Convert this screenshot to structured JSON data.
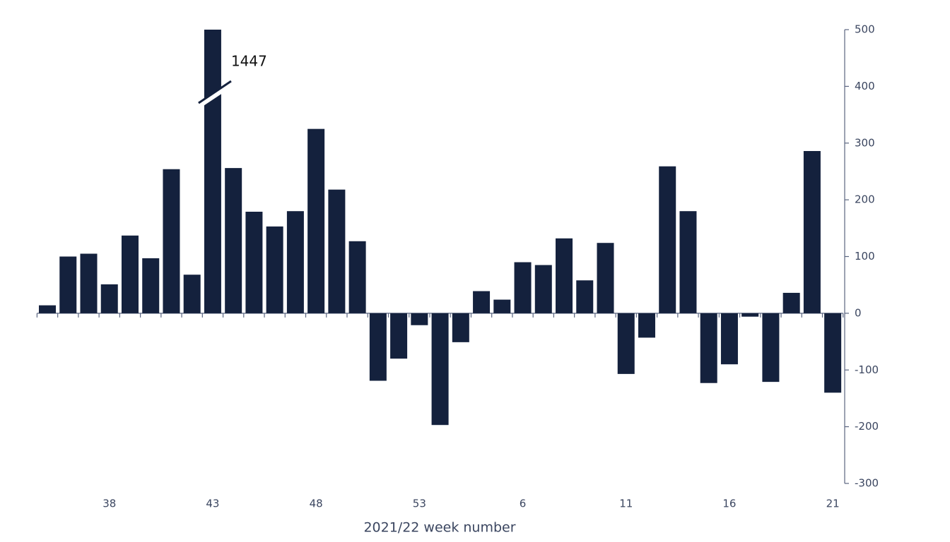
{
  "chart_data": {
    "type": "bar",
    "x_label": "2021/22 week number",
    "categories": [
      null,
      null,
      null,
      "38",
      null,
      null,
      null,
      null,
      "43",
      null,
      null,
      null,
      null,
      "48",
      null,
      null,
      null,
      null,
      "53",
      null,
      null,
      null,
      null,
      "6",
      null,
      null,
      null,
      null,
      "11",
      null,
      null,
      null,
      null,
      "16",
      null,
      null,
      null,
      null,
      "21"
    ],
    "values": [
      14,
      100,
      105,
      51,
      137,
      97,
      254,
      68,
      1447,
      256,
      179,
      153,
      180,
      325,
      218,
      127,
      -119,
      -80,
      -21,
      -197,
      -51,
      39,
      24,
      90,
      85,
      132,
      58,
      124,
      -107,
      -43,
      259,
      180,
      -123,
      -90,
      -6,
      -121,
      36,
      286,
      -140
    ],
    "color": "#14213d",
    "ylim": [
      -300,
      500
    ],
    "yticks": [
      -300,
      -200,
      -100,
      0,
      100,
      200,
      300,
      400,
      500
    ],
    "grid": false,
    "y_axis_side": "right",
    "broken_bar_index": 8
  }
}
